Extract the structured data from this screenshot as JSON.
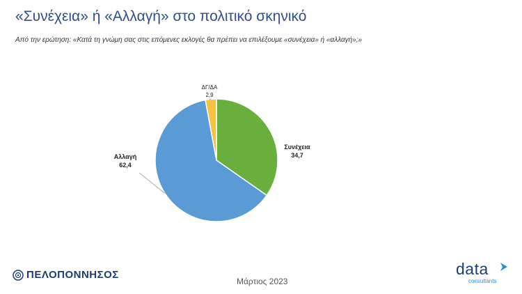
{
  "header": {
    "title": "«Συνέχεια» ή «Αλλαγή» στο πολιτικό σκηνικό",
    "subtitle": "Από την ερώτηση: «Κατά τη γνώμη σας στις επόμενες εκλογές θα πρέπει να επιλέξουμε «συνέχεια» ή «αλλαγή»;»"
  },
  "chart_data": {
    "type": "pie",
    "slices": [
      {
        "name": "Συνέχεια",
        "value": 34.7,
        "value_label": "34,7",
        "color": "#6aaf3d"
      },
      {
        "name": "Αλλαγή",
        "value": 62.4,
        "value_label": "62,4",
        "color": "#5b9bd5"
      },
      {
        "name": "ΔΓ/ΔΑ",
        "value": 2.9,
        "value_label": "2,9",
        "color": "#f5c242"
      }
    ]
  },
  "footer": {
    "brand": "ΠΕΛΟΠΟΝΝΗΣΟΣ",
    "date": "Μάρτιος 2023",
    "logo_word": "data",
    "logo_sub": "consultants"
  }
}
